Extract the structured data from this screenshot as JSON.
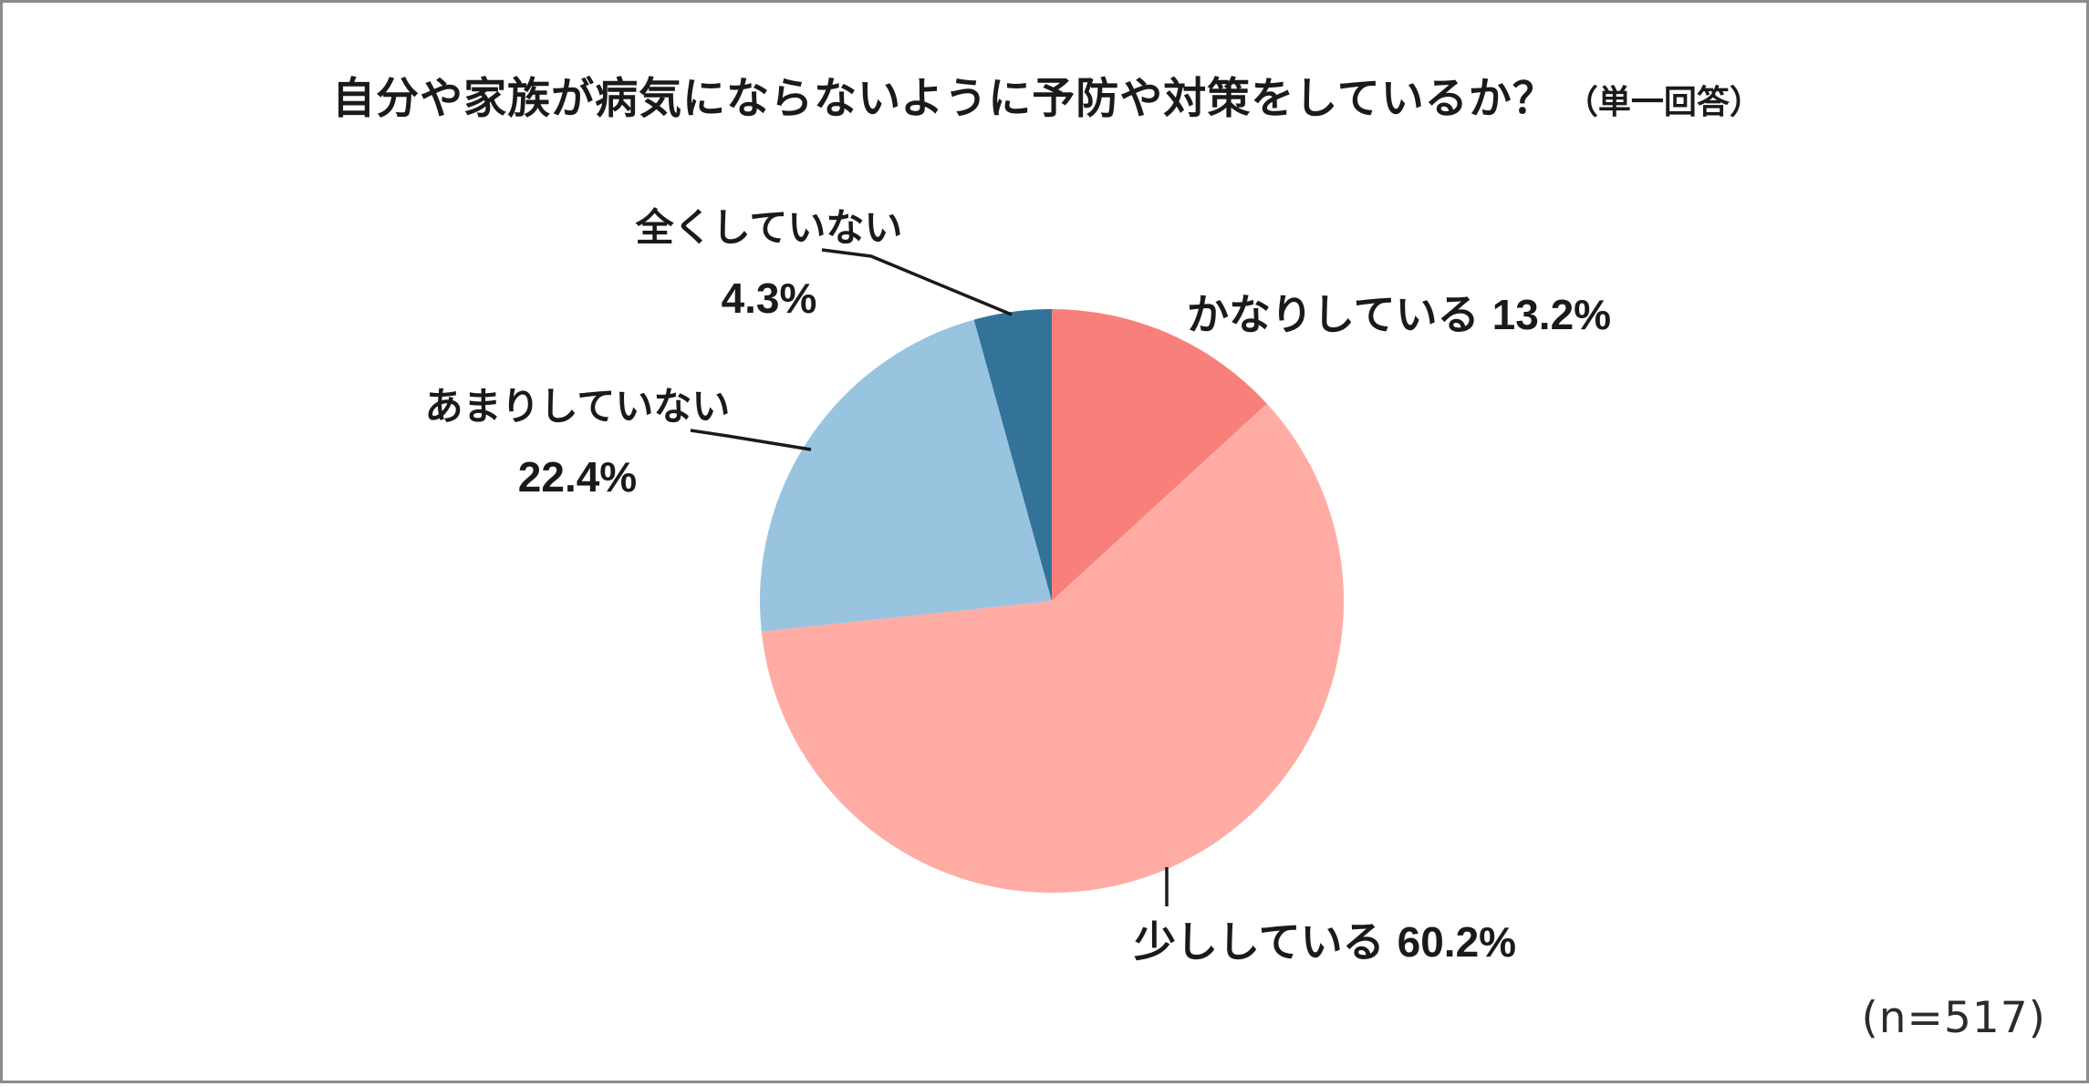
{
  "title": {
    "main": "自分や家族が病気にならないように予防や対策をしているか？",
    "sub": "（単一回答）"
  },
  "sample_size": "(n=517)",
  "chart_data": {
    "type": "pie",
    "title": "自分や家族が病気にならないように予防や対策をしているか？（単一回答）",
    "start_angle_deg": 0,
    "direction": "clockwise",
    "legend_position": "none",
    "n": 517,
    "segments": [
      {
        "label": "かなりしている",
        "value": 13.2,
        "pct_label": "13.2%",
        "color": "#F9807A"
      },
      {
        "label": "少ししている",
        "value": 60.2,
        "pct_label": "60.2%",
        "color": "#FFACA5"
      },
      {
        "label": "あまりしていない",
        "value": 22.4,
        "pct_label": "22.4%",
        "color": "#98C4E0"
      },
      {
        "label": "全くしていない",
        "value": 4.3,
        "pct_label": "4.3%",
        "color": "#33739A"
      }
    ]
  },
  "colors": {
    "frame_border": "#8B8B8B",
    "text": "#1A1A1A",
    "leader_line": "#1A1A1A"
  }
}
